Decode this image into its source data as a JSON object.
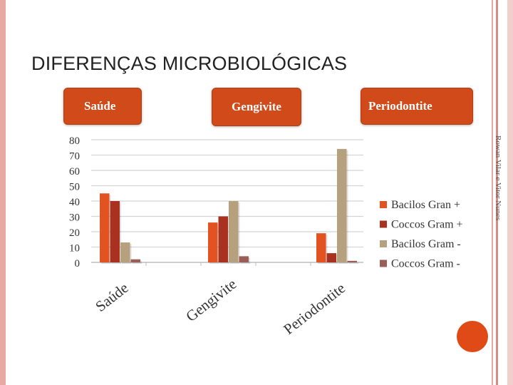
{
  "slide": {
    "title": "DIFERENÇAS MICROBIOLÓGICAS",
    "tabs": [
      "Saúde",
      "Gengivite",
      "Periodontite"
    ],
    "credit": "Rowan Vilar e Vitor Nunes",
    "accent_color": "#d04a1a"
  },
  "chart_data": {
    "type": "bar",
    "title": "",
    "xlabel": "",
    "ylabel": "",
    "categories": [
      "Saúde",
      "Gengivite",
      "Periodontite"
    ],
    "series": [
      {
        "name": "Bacilos Gran +",
        "values": [
          45,
          26,
          19
        ],
        "color": "#e35322"
      },
      {
        "name": "Coccos Gram +",
        "values": [
          40,
          30,
          6
        ],
        "color": "#a8321f"
      },
      {
        "name": "Bacilos Gram -",
        "values": [
          13,
          40,
          74
        ],
        "color": "#b7a07d"
      },
      {
        "name": "Coccos Gram -",
        "values": [
          2,
          4,
          1
        ],
        "color": "#9b5e57"
      }
    ],
    "ylim": [
      0,
      80
    ],
    "yticks": [
      0,
      10,
      20,
      30,
      40,
      50,
      60,
      70,
      80
    ],
    "grid": true,
    "legend": "right"
  }
}
